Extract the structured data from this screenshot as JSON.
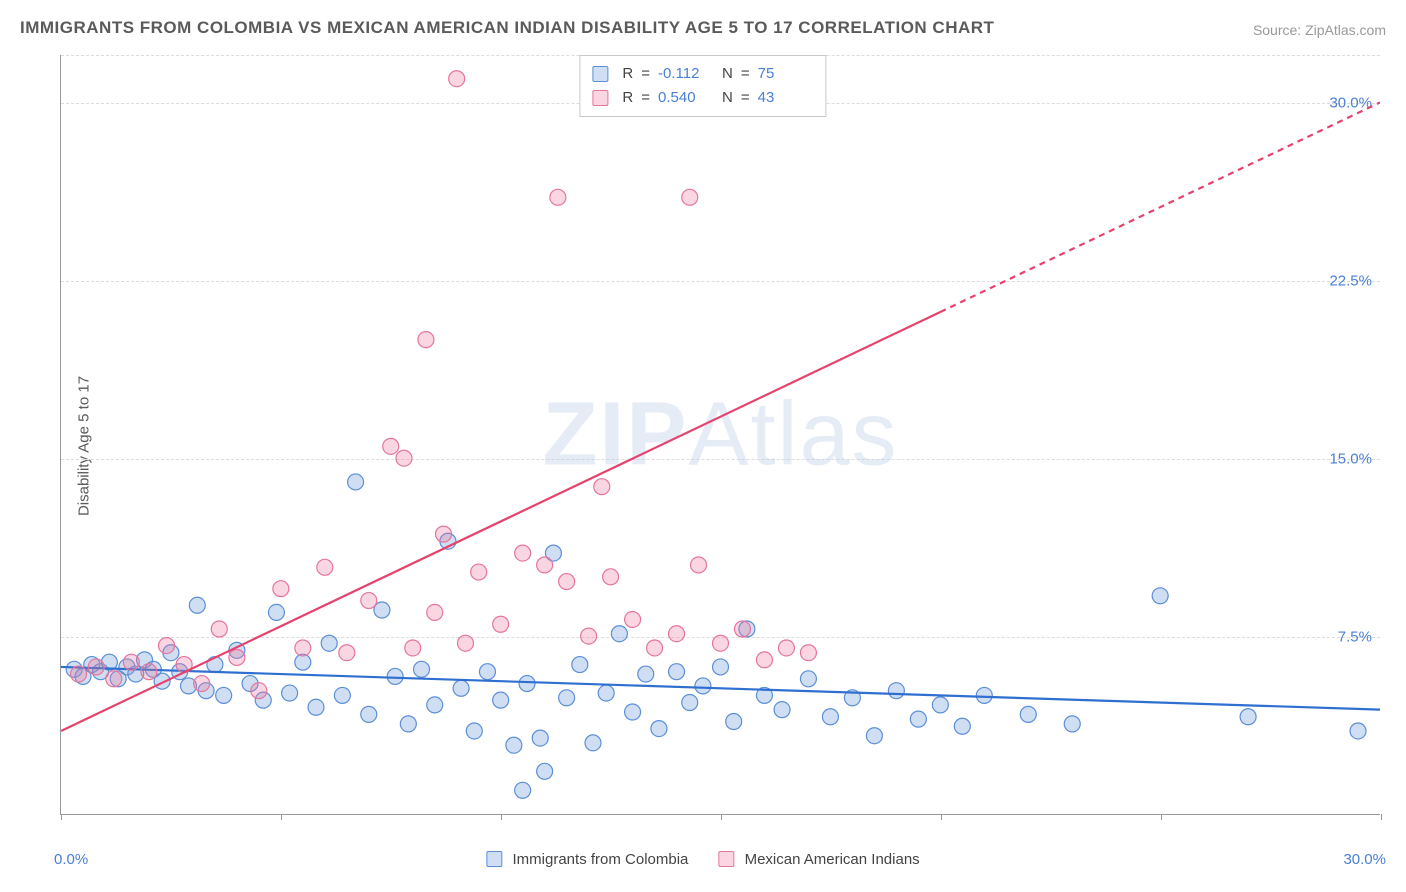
{
  "title": "IMMIGRANTS FROM COLOMBIA VS MEXICAN AMERICAN INDIAN DISABILITY AGE 5 TO 17 CORRELATION CHART",
  "source": "Source: ZipAtlas.com",
  "ylabel": "Disability Age 5 to 17",
  "watermark_bold": "ZIP",
  "watermark_light": "Atlas",
  "chart": {
    "type": "scatter-correlation",
    "background_color": "#ffffff",
    "grid_color": "#dcdcdc",
    "axis_color": "#999999",
    "tick_label_color": "#4a7fd6",
    "axis_label_color": "#5a5a5a",
    "xlim": [
      0,
      30
    ],
    "ylim": [
      0,
      32
    ],
    "xticks": [
      0,
      5,
      10,
      15,
      20,
      25,
      30
    ],
    "yticks": [
      7.5,
      15.0,
      22.5,
      30.0
    ],
    "xlabel_min": "0.0%",
    "xlabel_max": "30.0%",
    "ytick_labels": [
      "7.5%",
      "15.0%",
      "22.5%",
      "30.0%"
    ],
    "marker_radius": 8,
    "marker_stroke_width": 1.2,
    "line_width": 2.2,
    "series": [
      {
        "name": "Immigrants from Colombia",
        "fill": "rgba(120,160,220,0.35)",
        "stroke": "#5b8fd6",
        "line_color": "#2f6fd0",
        "R": "-0.112",
        "N": "75",
        "trend": {
          "x1": 0,
          "y1": 6.2,
          "x2": 30,
          "y2": 4.4,
          "dash": "none"
        },
        "points": [
          [
            0.3,
            6.1
          ],
          [
            0.5,
            5.8
          ],
          [
            0.7,
            6.3
          ],
          [
            0.9,
            6.0
          ],
          [
            1.1,
            6.4
          ],
          [
            1.3,
            5.7
          ],
          [
            1.5,
            6.2
          ],
          [
            1.7,
            5.9
          ],
          [
            1.9,
            6.5
          ],
          [
            2.1,
            6.1
          ],
          [
            2.3,
            5.6
          ],
          [
            2.5,
            6.8
          ],
          [
            2.7,
            6.0
          ],
          [
            2.9,
            5.4
          ],
          [
            3.1,
            8.8
          ],
          [
            3.3,
            5.2
          ],
          [
            3.5,
            6.3
          ],
          [
            3.7,
            5.0
          ],
          [
            4.0,
            6.9
          ],
          [
            4.3,
            5.5
          ],
          [
            4.6,
            4.8
          ],
          [
            4.9,
            8.5
          ],
          [
            5.2,
            5.1
          ],
          [
            5.5,
            6.4
          ],
          [
            5.8,
            4.5
          ],
          [
            6.1,
            7.2
          ],
          [
            6.4,
            5.0
          ],
          [
            6.7,
            14.0
          ],
          [
            7.0,
            4.2
          ],
          [
            7.3,
            8.6
          ],
          [
            7.6,
            5.8
          ],
          [
            7.9,
            3.8
          ],
          [
            8.2,
            6.1
          ],
          [
            8.5,
            4.6
          ],
          [
            8.8,
            11.5
          ],
          [
            9.1,
            5.3
          ],
          [
            9.4,
            3.5
          ],
          [
            9.7,
            6.0
          ],
          [
            10.0,
            4.8
          ],
          [
            10.3,
            2.9
          ],
          [
            10.6,
            5.5
          ],
          [
            10.9,
            3.2
          ],
          [
            11.2,
            11.0
          ],
          [
            11.5,
            4.9
          ],
          [
            11.8,
            6.3
          ],
          [
            12.1,
            3.0
          ],
          [
            12.4,
            5.1
          ],
          [
            12.7,
            7.6
          ],
          [
            13.0,
            4.3
          ],
          [
            13.3,
            5.9
          ],
          [
            13.6,
            3.6
          ],
          [
            14.0,
            6.0
          ],
          [
            14.3,
            4.7
          ],
          [
            14.6,
            5.4
          ],
          [
            15.0,
            6.2
          ],
          [
            15.3,
            3.9
          ],
          [
            15.6,
            7.8
          ],
          [
            16.0,
            5.0
          ],
          [
            16.4,
            4.4
          ],
          [
            17.0,
            5.7
          ],
          [
            17.5,
            4.1
          ],
          [
            18.0,
            4.9
          ],
          [
            18.5,
            3.3
          ],
          [
            19.0,
            5.2
          ],
          [
            19.5,
            4.0
          ],
          [
            20.0,
            4.6
          ],
          [
            20.5,
            3.7
          ],
          [
            21.0,
            5.0
          ],
          [
            22.0,
            4.2
          ],
          [
            23.0,
            3.8
          ],
          [
            25.0,
            9.2
          ],
          [
            27.0,
            4.1
          ],
          [
            29.5,
            3.5
          ],
          [
            10.5,
            1.0
          ],
          [
            11.0,
            1.8
          ]
        ]
      },
      {
        "name": "Mexican American Indians",
        "fill": "rgba(235,120,155,0.30)",
        "stroke": "#e6759e",
        "line_color": "#e6426e",
        "R": "0.540",
        "N": "43",
        "trend": {
          "x1": 0,
          "y1": 3.5,
          "x2": 30,
          "y2": 30.0,
          "solid_to_x": 20,
          "dash": "after"
        },
        "points": [
          [
            0.4,
            5.9
          ],
          [
            0.8,
            6.2
          ],
          [
            1.2,
            5.7
          ],
          [
            1.6,
            6.4
          ],
          [
            2.0,
            6.0
          ],
          [
            2.4,
            7.1
          ],
          [
            2.8,
            6.3
          ],
          [
            3.2,
            5.5
          ],
          [
            3.6,
            7.8
          ],
          [
            4.0,
            6.6
          ],
          [
            4.5,
            5.2
          ],
          [
            5.0,
            9.5
          ],
          [
            5.5,
            7.0
          ],
          [
            6.0,
            10.4
          ],
          [
            6.5,
            6.8
          ],
          [
            7.0,
            9.0
          ],
          [
            7.5,
            15.5
          ],
          [
            7.8,
            15.0
          ],
          [
            8.0,
            7.0
          ],
          [
            8.3,
            20.0
          ],
          [
            8.5,
            8.5
          ],
          [
            8.7,
            11.8
          ],
          [
            9.0,
            31.0
          ],
          [
            9.2,
            7.2
          ],
          [
            9.5,
            10.2
          ],
          [
            10.0,
            8.0
          ],
          [
            10.5,
            11.0
          ],
          [
            11.0,
            10.5
          ],
          [
            11.3,
            26.0
          ],
          [
            11.5,
            9.8
          ],
          [
            12.0,
            7.5
          ],
          [
            12.3,
            13.8
          ],
          [
            12.5,
            10.0
          ],
          [
            13.0,
            8.2
          ],
          [
            13.5,
            7.0
          ],
          [
            14.0,
            7.6
          ],
          [
            14.3,
            26.0
          ],
          [
            14.5,
            10.5
          ],
          [
            15.0,
            7.2
          ],
          [
            15.5,
            7.8
          ],
          [
            16.0,
            6.5
          ],
          [
            16.5,
            7.0
          ],
          [
            17.0,
            6.8
          ]
        ]
      }
    ]
  },
  "legend_bottom": {
    "series1_label": "Immigrants from Colombia",
    "series2_label": "Mexican American Indians"
  },
  "legend_stats": {
    "R_label": "R",
    "N_label": "N",
    "eq": "="
  }
}
